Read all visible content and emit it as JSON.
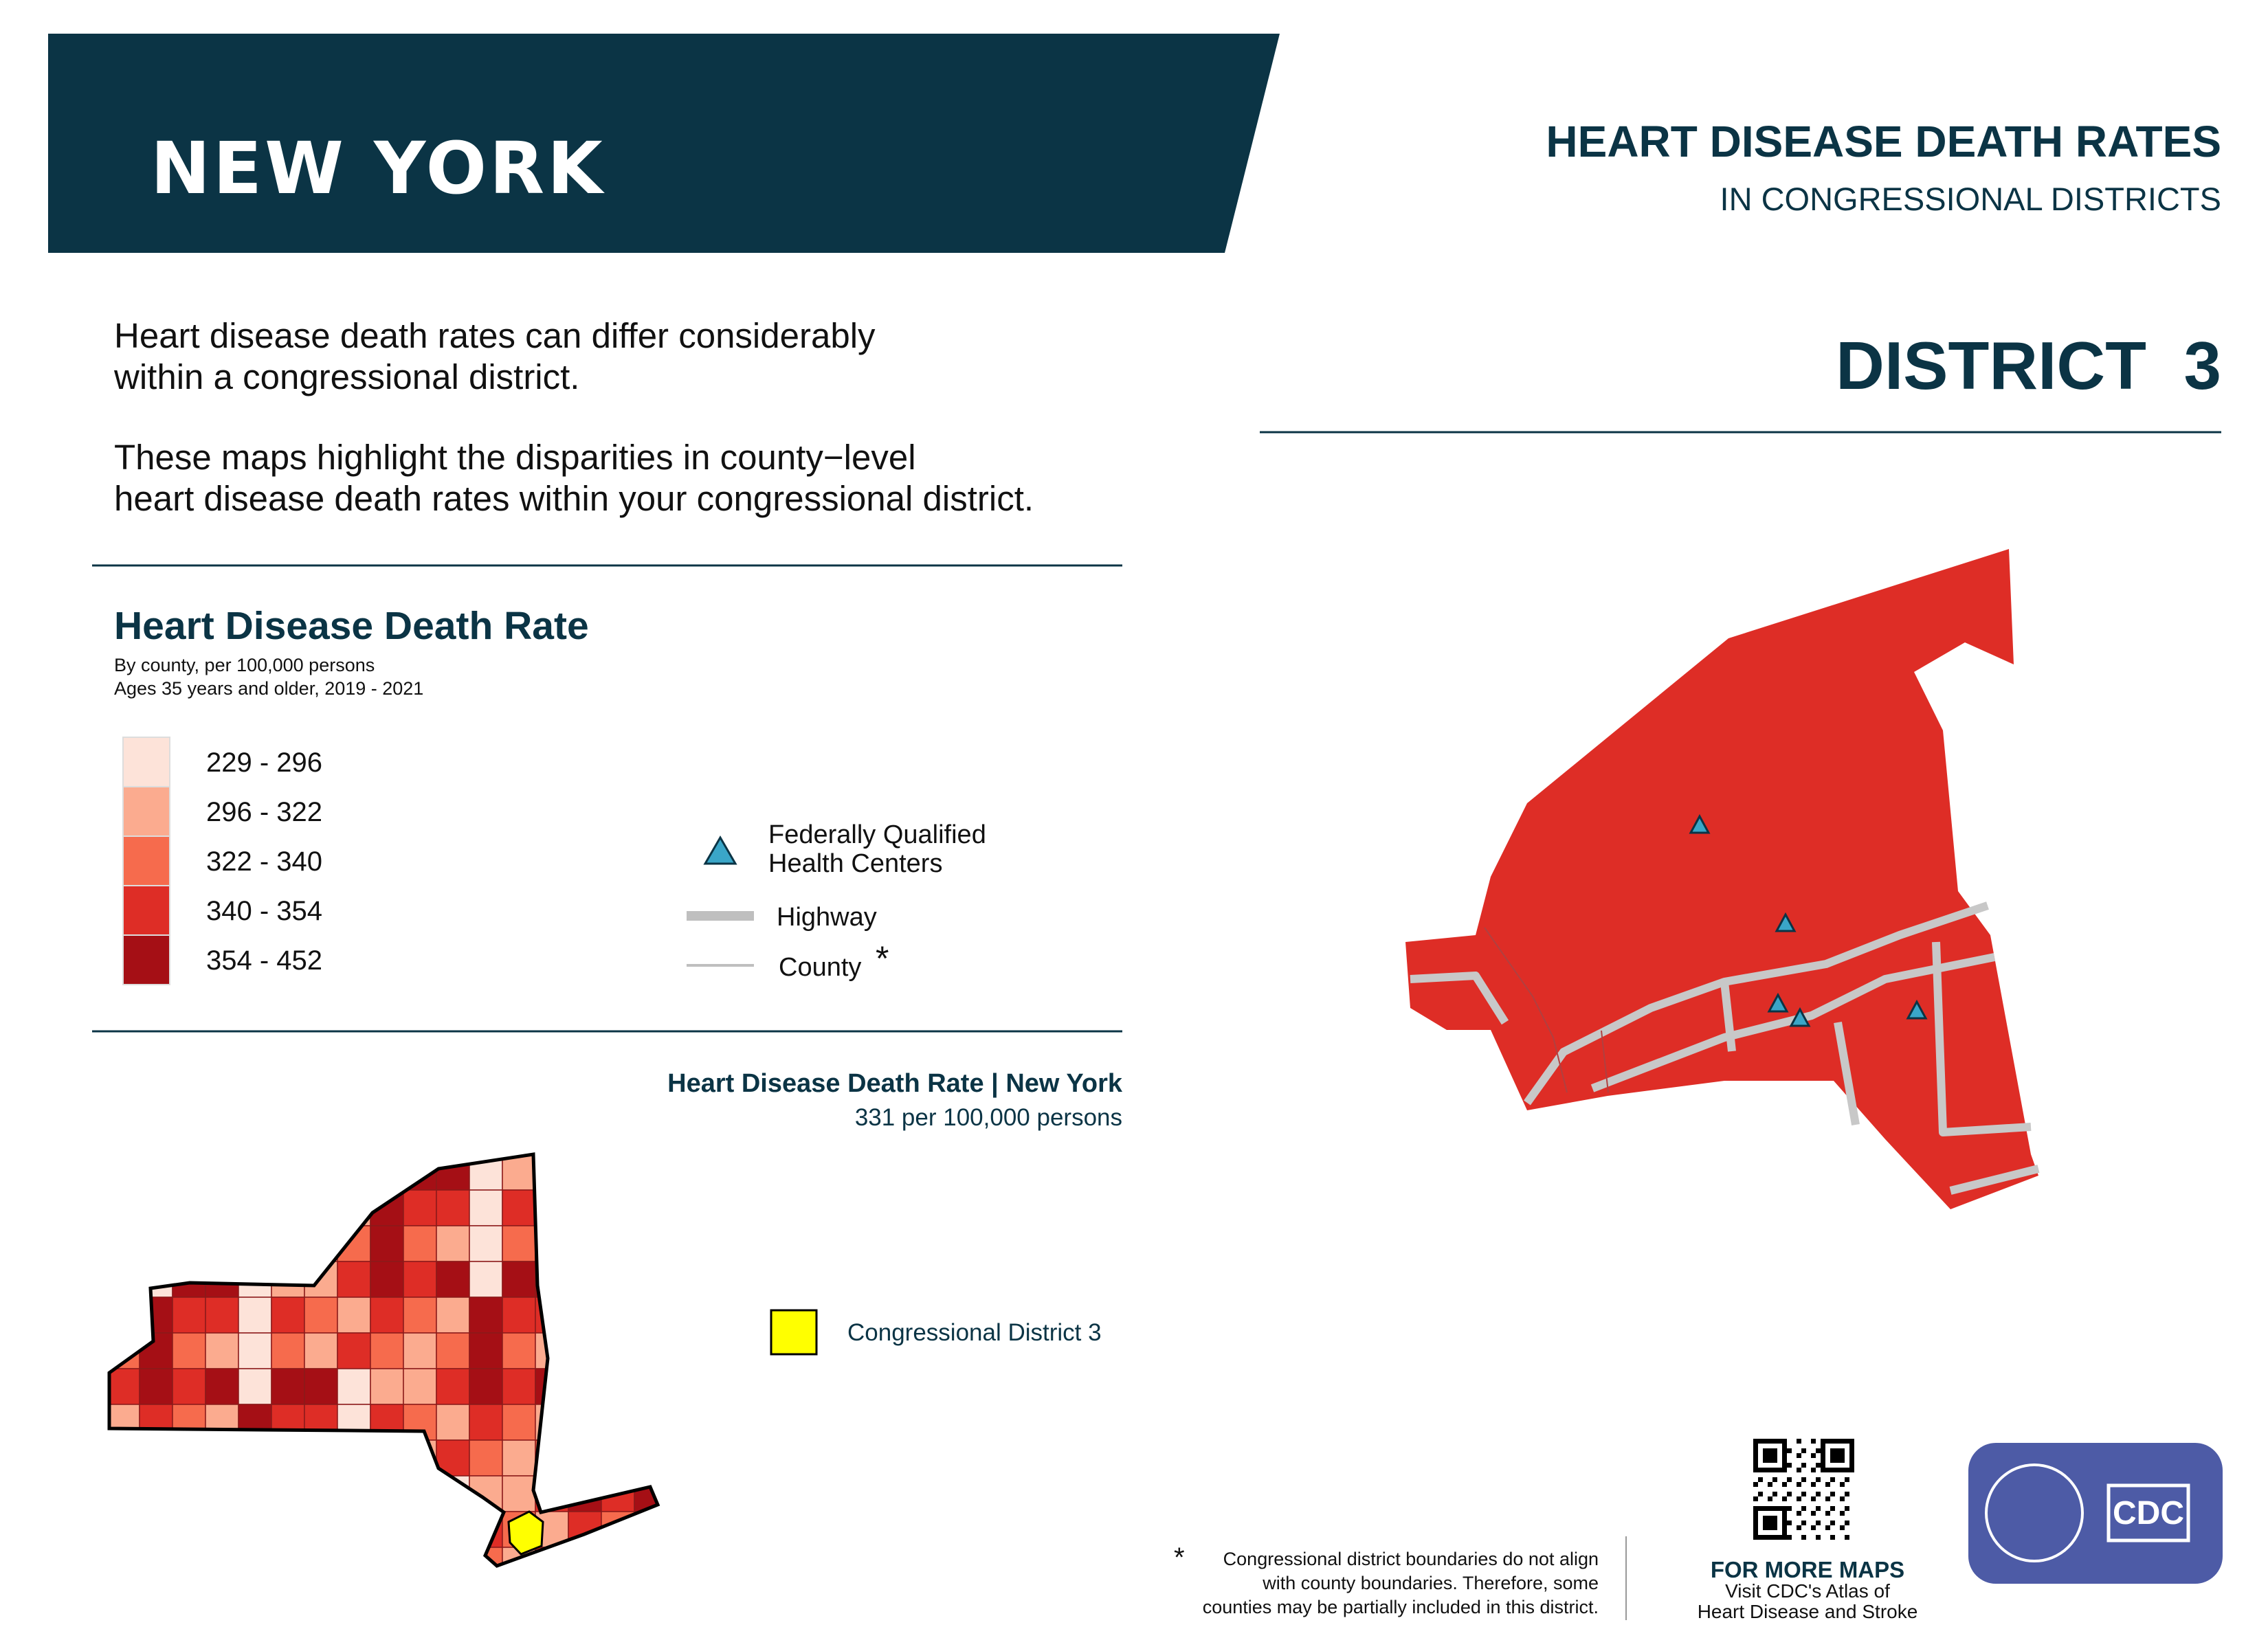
{
  "header": {
    "state": "NEW YORK",
    "title": "HEART DISEASE DEATH RATES",
    "subtitle": "IN CONGRESSIONAL DISTRICTS",
    "district": "DISTRICT  3"
  },
  "intro": {
    "paragraph_1": [
      "Heart disease death rates can differ considerably",
      "within a congressional district."
    ],
    "paragraph_2": [
      "These maps highlight the disparities in county−level",
      "heart disease death rates within your congressional district."
    ]
  },
  "legend": {
    "title": "Heart Disease Death Rate",
    "subtitle": [
      "By county, per 100,000 persons",
      "Ages 35 years and older, 2019 - 2021"
    ],
    "bins": [
      {
        "label": "229 - 296",
        "color": "#fde3d9"
      },
      {
        "label": "296 - 322",
        "color": "#fbab8f"
      },
      {
        "label": "322 - 340",
        "color": "#f66b4d"
      },
      {
        "label": "340 - 354",
        "color": "#de2d26"
      },
      {
        "label": "354 - 452",
        "color": "#a50f15"
      }
    ],
    "health_centers": [
      "Federally Qualified",
      "Health Centers"
    ],
    "highway": "Highway",
    "county": "County",
    "county_note_mark": "*"
  },
  "state_summary": {
    "title": "Heart Disease Death Rate | New York",
    "rate": "331 per 100,000 persons",
    "district_label": "Congressional District 3"
  },
  "footer": {
    "footnote_mark": "*",
    "footnote": [
      "Congressional district boundaries do not align",
      "with county boundaries. Therefore, some",
      "counties may be partially included in this district."
    ],
    "more_maps": "FOR MORE MAPS",
    "more_maps_text": [
      "Visit CDC's Atlas of",
      "Heart Disease and Stroke"
    ],
    "logo": "CDC"
  }
}
